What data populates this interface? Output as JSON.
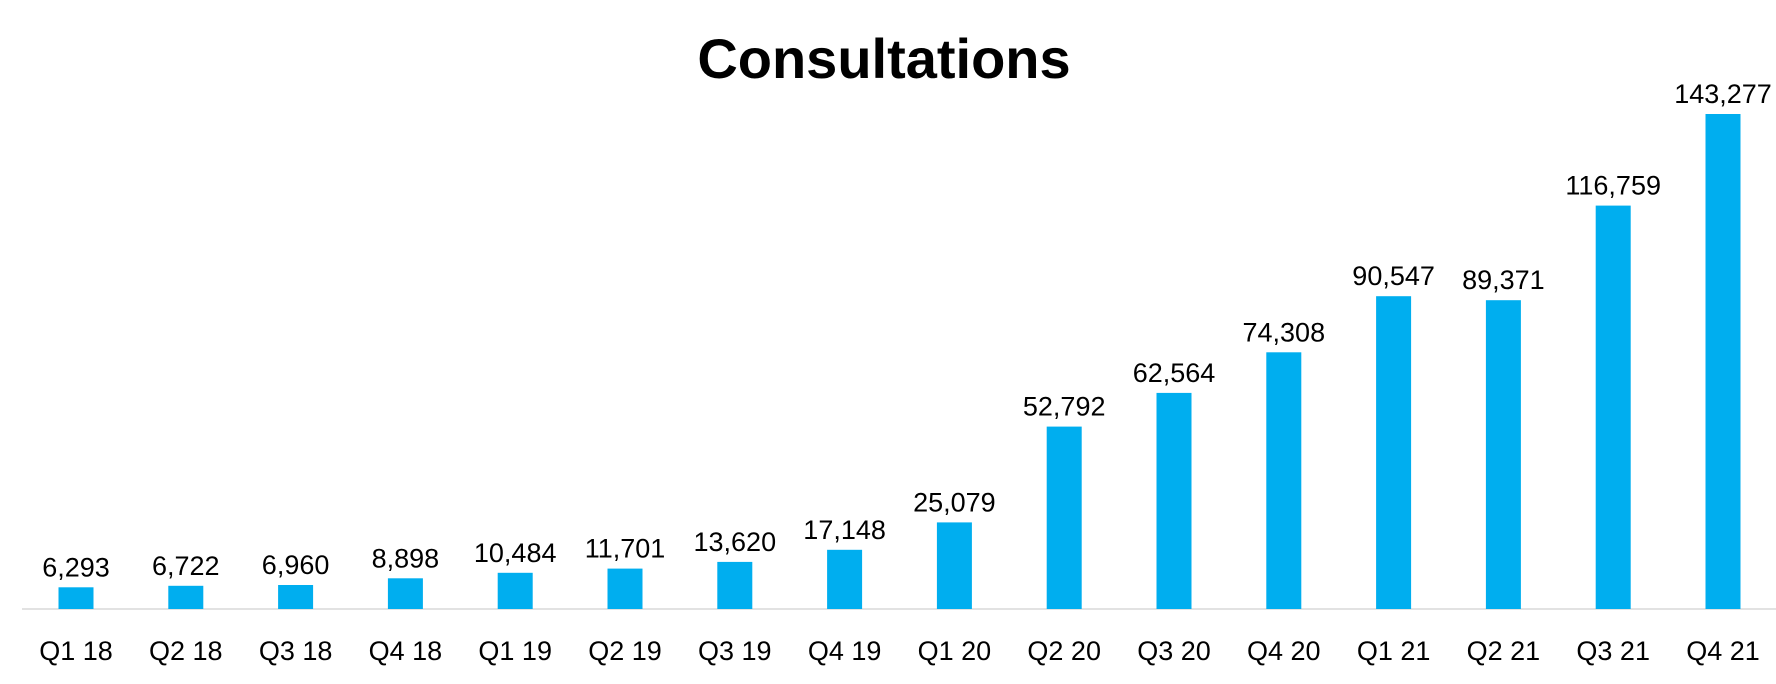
{
  "chart_data": {
    "type": "bar",
    "title": "Consultations",
    "xlabel": "",
    "ylabel": "",
    "categories": [
      "Q1 18",
      "Q2 18",
      "Q3 18",
      "Q4 18",
      "Q1 19",
      "Q2 19",
      "Q3 19",
      "Q4 19",
      "Q1 20",
      "Q2 20",
      "Q3 20",
      "Q4 20",
      "Q1 21",
      "Q2 21",
      "Q3 21",
      "Q4 21"
    ],
    "values": [
      6293,
      6722,
      6960,
      8898,
      10484,
      11701,
      13620,
      17148,
      25079,
      52792,
      62564,
      74308,
      90547,
      89371,
      116759,
      143277
    ],
    "value_labels": [
      "6,293",
      "6,722",
      "6,960",
      "8,898",
      "10,484",
      "11,701",
      "13,620",
      "17,148",
      "25,079",
      "52,792",
      "62,564",
      "74,308",
      "90,547",
      "89,371",
      "116,759",
      "143,277"
    ],
    "ylim": [
      0,
      143277
    ],
    "bar_color": "#00AEEF",
    "axis_color": "#D9D9D9",
    "grid": false,
    "legend": "none"
  }
}
